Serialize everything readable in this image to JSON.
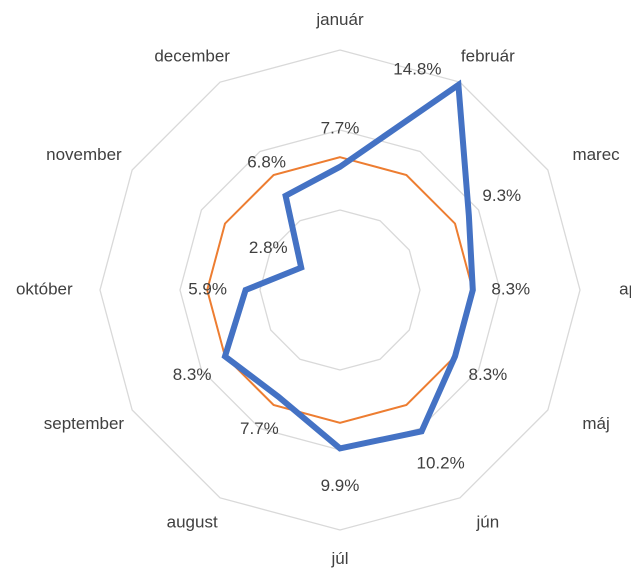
{
  "chart_data": {
    "type": "radar",
    "categories": [
      "január",
      "február",
      "marec",
      "apríl",
      "máj",
      "jún",
      "júl",
      "august",
      "september",
      "október",
      "november",
      "december"
    ],
    "series": [
      {
        "color": "#ed7d31",
        "values": [
          8.3,
          8.3,
          8.3,
          8.3,
          8.3,
          8.3,
          8.3,
          8.3,
          8.3,
          8.3,
          8.3,
          8.3
        ]
      },
      {
        "color": "#4472c4",
        "values": [
          7.7,
          14.8,
          9.3,
          8.3,
          8.3,
          10.2,
          9.9,
          7.7,
          8.3,
          5.9,
          2.8,
          6.8
        ],
        "value_labels": [
          "7.7%",
          "14.8%",
          "9.3%",
          "8.3%",
          "8.3%",
          "10.2%",
          "9.9%",
          "7.7%",
          "8.3%",
          "5.9%",
          "2.8%",
          "6.8%"
        ]
      }
    ],
    "ylim": [
      0,
      15
    ],
    "yticks": [
      0,
      5,
      10,
      15
    ],
    "grid": true
  }
}
